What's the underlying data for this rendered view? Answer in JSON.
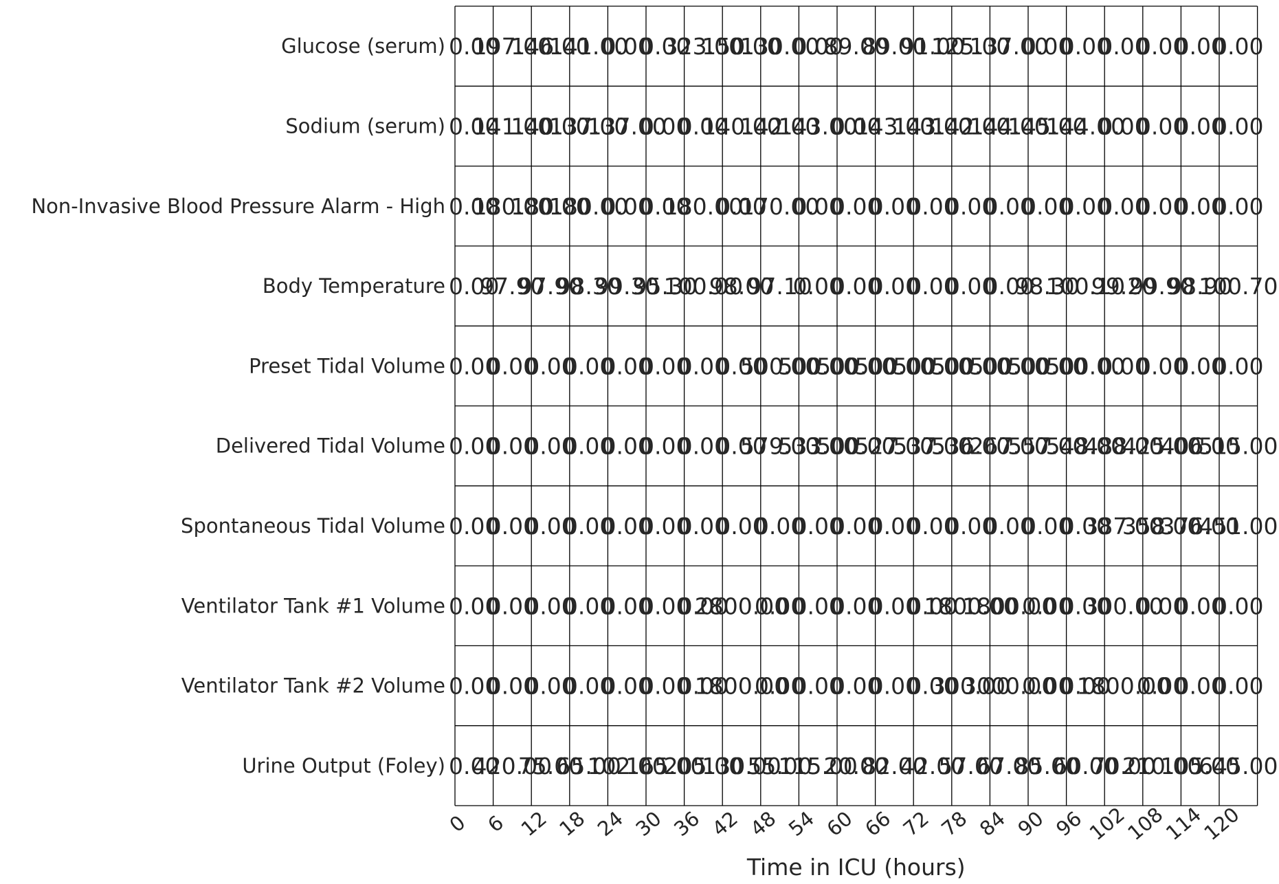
{
  "chart_data": {
    "type": "table",
    "xlabel": "Time in ICU (hours)",
    "x_ticks": [
      "0",
      "6",
      "12",
      "18",
      "24",
      "30",
      "36",
      "42",
      "48",
      "54",
      "60",
      "66",
      "72",
      "78",
      "84",
      "90",
      "96",
      "102",
      "108",
      "114",
      "120"
    ],
    "rows": [
      {
        "label": "Glucose (serum)",
        "cells": [
          "0.00",
          "197.00",
          "146.00",
          "141.00",
          "0.00",
          "0.00",
          "323.00",
          "150.00",
          "130.00",
          "0.00",
          "89.00",
          "89.00",
          "91.00",
          "125.00",
          "137.00",
          "0.00",
          "0.00",
          "0.00",
          "0.00",
          "0.00",
          "0.00"
        ]
      },
      {
        "label": "Sodium (serum)",
        "cells": [
          "0.00",
          "141.00",
          "140.00",
          "137.00",
          "137.00",
          "0.00",
          "0.00",
          "140.00",
          "142.00",
          "143.00",
          "0.00",
          "143.00",
          "143.00",
          "142.00",
          "144.00",
          "145.00",
          "144.00",
          "0.00",
          "0.00",
          "0.00",
          "0.00"
        ]
      },
      {
        "label": "Non-Invasive Blood Pressure Alarm - High",
        "cells": [
          "0.00",
          "180.00",
          "180.00",
          "180.00",
          "0.00",
          "0.00",
          "180.00",
          "0.00",
          "170.00",
          "0.00",
          "0.00",
          "0.00",
          "0.00",
          "0.00",
          "0.00",
          "0.00",
          "0.00",
          "0.00",
          "0.00",
          "0.00",
          "0.00"
        ]
      },
      {
        "label": "Body Temperature",
        "cells": [
          "0.00",
          "97.90",
          "97.90",
          "98.30",
          "99.30",
          "95.30",
          "100.00",
          "98.00",
          "97.10",
          "0.00",
          "0.00",
          "0.00",
          "0.00",
          "0.00",
          "0.00",
          "98.30",
          "100.10",
          "99.20",
          "99.90",
          "98.90",
          "100.70"
        ]
      },
      {
        "label": "Preset Tidal Volume",
        "cells": [
          "0.00",
          "0.00",
          "0.00",
          "0.00",
          "0.00",
          "0.00",
          "0.00",
          "0.00",
          "500.00",
          "500.00",
          "500.00",
          "500.00",
          "500.00",
          "500.00",
          "500.00",
          "500.00",
          "500.00",
          "0.00",
          "0.00",
          "0.00",
          "0.00"
        ]
      },
      {
        "label": "Delivered Tidal Volume",
        "cells": [
          "0.00",
          "0.00",
          "0.00",
          "0.00",
          "0.00",
          "0.00",
          "0.00",
          "0.00",
          "579.00",
          "533.00",
          "500.00",
          "527.00",
          "537.00",
          "536.00",
          "267.00",
          "557.00",
          "548.00",
          "488.00",
          "425.00",
          "406.00",
          "515.00"
        ]
      },
      {
        "label": "Spontaneous Tidal Volume",
        "cells": [
          "0.00",
          "0.00",
          "0.00",
          "0.00",
          "0.00",
          "0.00",
          "0.00",
          "0.00",
          "0.00",
          "0.00",
          "0.00",
          "0.00",
          "0.00",
          "0.00",
          "0.00",
          "0.00",
          "0.00",
          "387.00",
          "358.00",
          "376.00",
          "451.00"
        ]
      },
      {
        "label": "Ventilator Tank #1 Volume",
        "cells": [
          "0.00",
          "0.00",
          "0.00",
          "0.00",
          "0.00",
          "0.00",
          "0.00",
          "2800.00",
          "0.00",
          "0.00",
          "0.00",
          "0.00",
          "0.00",
          "1800.00",
          "1800.00",
          "0.00",
          "0.00",
          "300.00",
          "0.00",
          "0.00",
          "0.00"
        ]
      },
      {
        "label": "Ventilator Tank #2 Volume",
        "cells": [
          "0.00",
          "0.00",
          "0.00",
          "0.00",
          "0.00",
          "0.00",
          "0.00",
          "1800.00",
          "0.00",
          "0.00",
          "0.00",
          "0.00",
          "0.00",
          "300.00",
          "3000.00",
          "0.00",
          "0.00",
          "1800.00",
          "0.00",
          "0.00",
          "0.00"
        ]
      },
      {
        "label": "Urine Output (Foley)",
        "cells": [
          "0.00",
          "420.00",
          "75.00",
          "65.00",
          "102.00",
          "165.00",
          "205.00",
          "130.00",
          "55.00",
          "115.00",
          "20.00",
          "82.00",
          "42.00",
          "57.00",
          "67.00",
          "85.00",
          "60.00",
          "70.00",
          "210.00",
          "105.00",
          "645.00"
        ]
      }
    ]
  }
}
